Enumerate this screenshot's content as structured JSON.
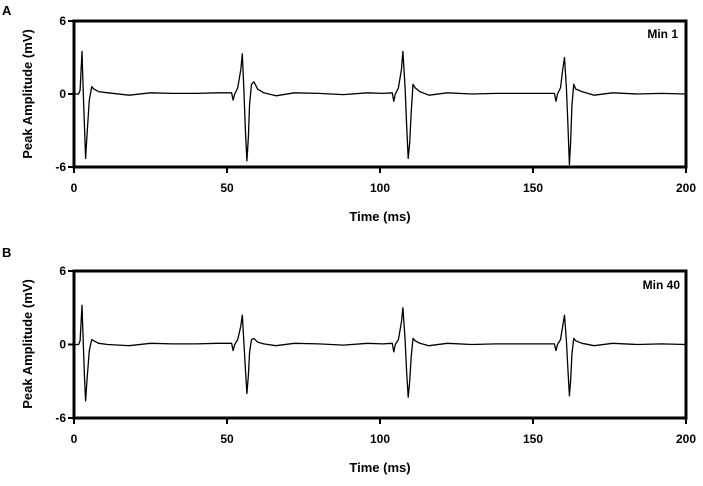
{
  "colors": {
    "trace": "#000000",
    "axis": "#000000",
    "background": "#ffffff"
  },
  "chart_data": [
    {
      "type": "line",
      "panel": "A",
      "label": "Min 1",
      "xlabel": "Time (ms)",
      "ylabel": "Peak Amplitude (mV)",
      "xlim": [
        0,
        200
      ],
      "ylim": [
        -6,
        6
      ],
      "xticks": [
        0,
        50,
        100,
        150,
        200
      ],
      "yticks": [
        -6,
        0,
        6
      ],
      "yticklabels": [
        "-6",
        "0",
        "6"
      ],
      "grid": false,
      "series": [
        {
          "x": [
            0,
            1.5,
            2,
            2.6,
            3,
            3.4,
            3.8,
            4.2,
            5,
            5.8,
            6.5,
            8,
            11,
            18,
            25,
            32,
            40,
            47,
            51.5,
            52,
            52.5,
            53.5,
            54.5,
            55,
            55.5,
            56,
            56.5,
            57,
            57.4,
            58,
            58.8,
            60,
            62,
            66,
            72,
            80,
            88,
            96,
            101,
            104,
            104.5,
            105,
            106,
            107,
            107.5,
            108.2,
            108.7,
            109.2,
            109.7,
            110.2,
            110.8,
            111.5,
            113,
            116,
            122,
            130,
            138,
            146,
            151.5,
            157,
            157.5,
            158,
            159,
            159.7,
            160.3,
            160.9,
            161.4,
            161.9,
            162.3,
            162.7,
            163.3,
            164,
            166,
            170,
            176,
            184,
            192,
            200
          ],
          "y": [
            0,
            0,
            0.3,
            3.5,
            0.3,
            -2.5,
            -5.3,
            -3.5,
            -0.5,
            0.6,
            0.4,
            0.2,
            0.1,
            -0.1,
            0.1,
            0.05,
            0.05,
            0.1,
            0.1,
            -0.5,
            0,
            0.5,
            2,
            3.3,
            0.5,
            -3,
            -5.5,
            -3.5,
            -0.8,
            0.8,
            1,
            0.4,
            0.1,
            -0.15,
            0.1,
            0.05,
            -0.05,
            0.1,
            0.05,
            0.1,
            -0.6,
            0,
            0.5,
            2,
            3.5,
            0.5,
            -2.5,
            -5.3,
            -4,
            -1.5,
            0.8,
            0.5,
            0.2,
            -0.1,
            0.1,
            0,
            0.05,
            0.05,
            0.05,
            0.05,
            -0.6,
            0,
            0.5,
            2,
            3,
            0.5,
            -2.5,
            -5.8,
            -4,
            -1,
            0.8,
            0.4,
            0.2,
            -0.1,
            0.1,
            0,
            0.05,
            0
          ]
        }
      ]
    },
    {
      "type": "line",
      "panel": "B",
      "label": "Min 40",
      "xlabel": "Time (ms)",
      "ylabel": "Peak Amplitude (mV)",
      "xlim": [
        0,
        200
      ],
      "ylim": [
        -6,
        6
      ],
      "xticks": [
        0,
        50,
        100,
        150,
        200
      ],
      "yticks": [
        -6,
        0,
        6
      ],
      "yticklabels": [
        "-6",
        "0",
        "6"
      ],
      "grid": false,
      "series": [
        {
          "x": [
            0,
            1.5,
            2,
            2.6,
            3,
            3.4,
            3.8,
            4.2,
            5,
            5.8,
            6.5,
            8,
            11,
            18,
            25,
            32,
            40,
            47,
            51.5,
            52,
            52.5,
            53.5,
            54.5,
            55,
            55.5,
            56,
            56.5,
            57,
            57.4,
            58,
            58.8,
            60,
            62,
            66,
            72,
            80,
            88,
            96,
            101,
            104,
            104.5,
            105,
            106,
            107,
            107.5,
            108.2,
            108.7,
            109.2,
            109.7,
            110.2,
            110.8,
            111.5,
            113,
            116,
            122,
            130,
            138,
            146,
            151.5,
            157,
            157.5,
            158,
            159,
            159.7,
            160.3,
            160.9,
            161.4,
            161.9,
            162.3,
            162.7,
            163.3,
            164,
            166,
            170,
            176,
            184,
            192,
            200
          ],
          "y": [
            0,
            0,
            0.3,
            3.2,
            0.3,
            -2.5,
            -4.6,
            -3,
            -0.5,
            0.4,
            0.3,
            0.1,
            0,
            -0.1,
            0.1,
            0.05,
            0.05,
            0.1,
            0.1,
            -0.5,
            0,
            0.4,
            1.5,
            2.4,
            0.3,
            -2,
            -4,
            -2.5,
            -0.6,
            0.4,
            0.5,
            0.2,
            0.05,
            -0.1,
            0.1,
            0.05,
            -0.05,
            0.1,
            0.05,
            0.1,
            -0.6,
            0,
            0.4,
            1.8,
            3.0,
            0.4,
            -2.2,
            -4.3,
            -3,
            -1,
            0.5,
            0.3,
            0.1,
            -0.1,
            0.1,
            0,
            0.05,
            0.05,
            0.05,
            0.05,
            -0.5,
            0,
            0.4,
            1.5,
            2.4,
            0.3,
            -2,
            -4.2,
            -3,
            -0.8,
            0.5,
            0.3,
            0.1,
            -0.1,
            0.1,
            0,
            0.05,
            0
          ]
        }
      ]
    }
  ]
}
